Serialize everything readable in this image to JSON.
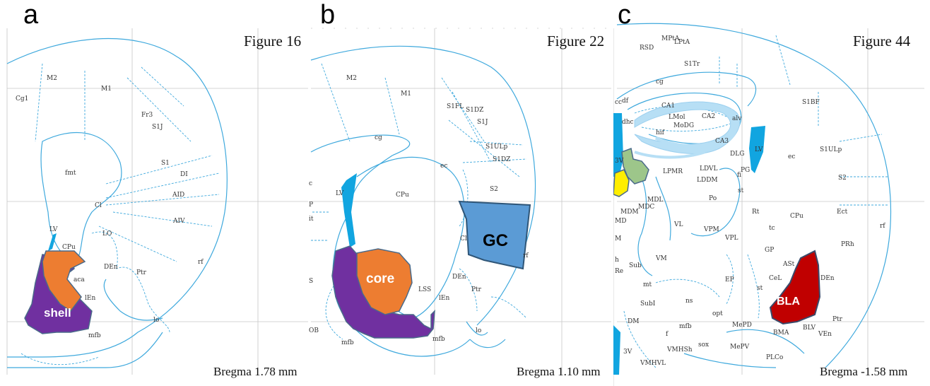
{
  "panels": {
    "a": {
      "letter": "a",
      "figure": "Figure 16",
      "bregma": "Bregma 1.78 mm",
      "regions": [
        "M2",
        "M1",
        "Cg1",
        "Fr3",
        "S1J",
        "S1",
        "DI",
        "AID",
        "AIV",
        "fmt",
        "Cl",
        "LO",
        "DEn",
        "Ptr",
        "LV",
        "CPu",
        "aca",
        "lEn",
        "rf",
        "lo",
        "mfb"
      ],
      "highlights": {
        "shell": "shell"
      }
    },
    "b": {
      "letter": "b",
      "figure": "Figure 22",
      "bregma": "Bregma 1.10 mm",
      "regions": [
        "M2",
        "M1",
        "S1FL",
        "S1DZ",
        "S1J",
        "cg",
        "ec",
        "S1ULp",
        "S1DZ",
        "S2",
        "LV",
        "CPu",
        "Cl",
        "rf",
        "DEn",
        "Ptr",
        "LSS",
        "lEn",
        "lo",
        "mfb",
        "mfb",
        "c",
        "P",
        "S",
        "OB",
        "it"
      ],
      "highlights": {
        "core": "core",
        "gc": "GC"
      }
    },
    "c": {
      "letter": "c",
      "figure": "Figure 44",
      "bregma": "Bregma -1.58 mm",
      "regions": [
        "RSD",
        "MPtA",
        "LPtA",
        "S1Tr",
        "cg",
        "S1BF",
        "cc",
        "df",
        "dhc",
        "CA1",
        "LMol",
        "MoDG",
        "CA2",
        "alv",
        "hif",
        "CA3",
        "LV",
        "3V",
        "ec",
        "S1ULp",
        "DLG",
        "PG",
        "LPMR",
        "LDVL",
        "LDDM",
        "fi",
        "st",
        "S2",
        "MDL",
        "MDC",
        "MDM",
        "Po",
        "Rt",
        "CPu",
        "Ect",
        "rf",
        "MD",
        "VL",
        "VPM",
        "VPL",
        "tc",
        "M",
        "Sub",
        "VM",
        "GP",
        "PRh",
        "h",
        "Re",
        "ASt",
        "mt",
        "EP",
        "CeL",
        "st",
        "DEn",
        "SubI",
        "ns",
        "opt",
        "DM",
        "f",
        "mfb",
        "MePD",
        "BMA",
        "BLV",
        "VEn",
        "Ptr",
        "3V",
        "VMHSh",
        "sox",
        "MePV",
        "VMHVL",
        "PLCo"
      ],
      "highlights": {
        "bla": "BLA"
      }
    }
  },
  "colors": {
    "outline": "#3fa9dd",
    "ventricle": "#11a5e0",
    "shell": "#7030a0",
    "core": "#ed7d31",
    "gc": "#5b9bd5",
    "bla": "#c00000",
    "hippocampus": "#b7dff5",
    "green_region": "#9dc68a",
    "yellow_region": "#ffee00"
  }
}
